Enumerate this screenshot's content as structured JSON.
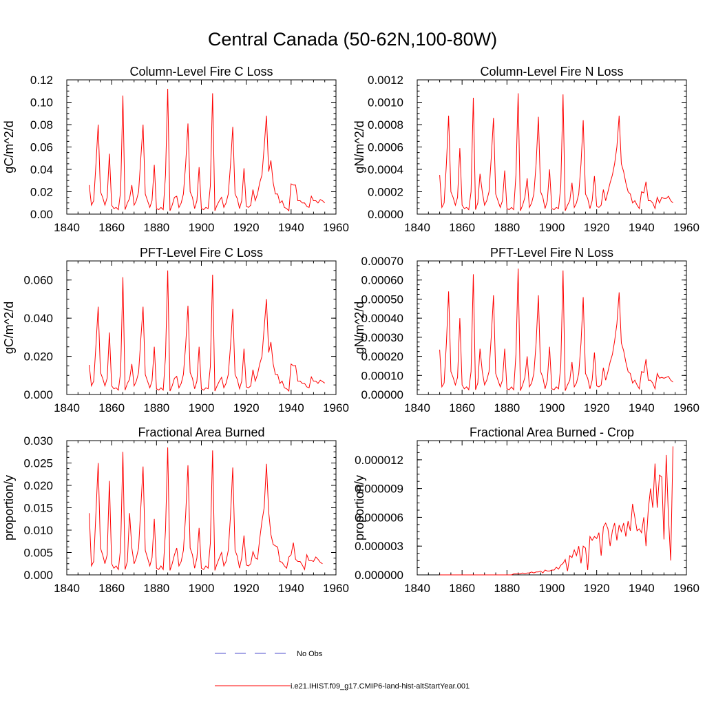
{
  "figure_title": "Central Canada (50-62N,100-80W)",
  "legend": {
    "obs_label": "No Obs",
    "obs_color": "#4d4dcc",
    "model_label": "i.e21.IHIST.f09_g17.CMIP6-land-hist-altStartYear.001",
    "model_color": "#ff0000"
  },
  "chart_data": [
    {
      "type": "line",
      "title": "Column-Level Fire C Loss",
      "ylabel": "gC/m^2/d",
      "xlim": [
        1840,
        1960
      ],
      "ylim": [
        0,
        0.12
      ],
      "xticks": [
        "1840",
        "1860",
        "1880",
        "1900",
        "1920",
        "1940",
        "1960"
      ],
      "yticks": [
        "0.00",
        "0.02",
        "0.04",
        "0.06",
        "0.08",
        "0.10",
        "0.12"
      ],
      "series": [
        {
          "x_start": 1850,
          "values": [
            0.026,
            0.008,
            0.012,
            0.045,
            0.08,
            0.02,
            0.015,
            0.008,
            0.015,
            0.054,
            0.008,
            0.005,
            0.006,
            0.004,
            0.02,
            0.106,
            0.004,
            0.01,
            0.014,
            0.026,
            0.008,
            0.012,
            0.02,
            0.05,
            0.08,
            0.018,
            0.012,
            0.006,
            0.012,
            0.044,
            0.005,
            0.004,
            0.006,
            0.004,
            0.035,
            0.112,
            0.003,
            0.008,
            0.015,
            0.016,
            0.006,
            0.01,
            0.018,
            0.045,
            0.081,
            0.02,
            0.015,
            0.005,
            0.012,
            0.042,
            0.005,
            0.004,
            0.006,
            0.005,
            0.025,
            0.108,
            0.003,
            0.008,
            0.012,
            0.015,
            0.006,
            0.01,
            0.018,
            0.045,
            0.078,
            0.018,
            0.014,
            0.005,
            0.012,
            0.041,
            0.007,
            0.006,
            0.008,
            0.022,
            0.012,
            0.018,
            0.028,
            0.035,
            0.06,
            0.088,
            0.038,
            0.048,
            0.028,
            0.018,
            0.018,
            0.01,
            0.012,
            0.006,
            0.005,
            0.003,
            0.027,
            0.026,
            0.026,
            0.012,
            0.012,
            0.01,
            0.01,
            0.007,
            0.006,
            0.016,
            0.012,
            0.012,
            0.01,
            0.013,
            0.012,
            0.01
          ]
        }
      ]
    },
    {
      "type": "line",
      "title": "Column-Level Fire N Loss",
      "ylabel": "gN/m^2/d",
      "xlim": [
        1840,
        1960
      ],
      "ylim": [
        0,
        0.0012
      ],
      "xticks": [
        "1840",
        "1860",
        "1880",
        "1900",
        "1920",
        "1940",
        "1960"
      ],
      "yticks": [
        "0.0000",
        "0.0002",
        "0.0004",
        "0.0006",
        "0.0008",
        "0.0010",
        "0.0012"
      ],
      "series": [
        {
          "x_start": 1850,
          "values": [
            0.00035,
            6e-05,
            0.0001,
            0.00045,
            0.00088,
            0.0002,
            0.00015,
            8e-05,
            0.00015,
            0.00059,
            8e-05,
            5e-05,
            6e-05,
            4e-05,
            0.0002,
            0.00104,
            4e-05,
            0.0001,
            0.00036,
            0.0002,
            8e-05,
            0.00012,
            0.0002,
            0.0005,
            0.00086,
            0.00018,
            0.00012,
            6e-05,
            0.00012,
            0.00039,
            5e-05,
            4e-05,
            6e-05,
            4e-05,
            0.00035,
            0.00108,
            3e-05,
            8e-05,
            0.00015,
            0.00032,
            6e-05,
            0.0001,
            0.00018,
            0.00045,
            0.00087,
            0.0002,
            0.00015,
            5e-05,
            0.00012,
            0.0004,
            5e-05,
            4e-05,
            6e-05,
            5e-05,
            0.00025,
            0.00107,
            3e-05,
            8e-05,
            0.00012,
            0.00028,
            6e-05,
            0.0001,
            0.00018,
            0.00045,
            0.00084,
            0.00018,
            0.00014,
            5e-05,
            0.00012,
            0.00034,
            7e-05,
            6e-05,
            8e-05,
            0.00022,
            0.00012,
            0.0002,
            0.00028,
            0.00035,
            0.00045,
            0.0006,
            0.00088,
            0.00045,
            0.00038,
            0.00028,
            0.0002,
            0.00018,
            0.0001,
            0.00012,
            8e-05,
            5e-05,
            0.0002,
            0.00019,
            0.00029,
            0.00012,
            0.00012,
            0.0001,
            5e-05,
            0.00015,
            0.0001,
            0.00015,
            0.00014,
            0.00014,
            0.00016,
            0.00012,
            0.0001
          ]
        }
      ]
    },
    {
      "type": "line",
      "title": "PFT-Level Fire C Loss",
      "ylabel": "gC/m^2/d",
      "xlim": [
        1840,
        1960
      ],
      "ylim": [
        0,
        0.07
      ],
      "xticks": [
        "1840",
        "1860",
        "1880",
        "1900",
        "1920",
        "1940",
        "1960"
      ],
      "yticks": [
        "0.000",
        "0.020",
        "0.040",
        "0.060"
      ],
      "ytick_values": [
        0,
        0.02,
        0.04,
        0.06
      ],
      "series": [
        {
          "x_start": 1850,
          "values": [
            0.0155,
            0.0045,
            0.007,
            0.026,
            0.046,
            0.0115,
            0.0085,
            0.0045,
            0.0085,
            0.0325,
            0.0045,
            0.003,
            0.0035,
            0.0023,
            0.0115,
            0.0615,
            0.0023,
            0.0058,
            0.008,
            0.016,
            0.0045,
            0.007,
            0.0115,
            0.029,
            0.046,
            0.0105,
            0.007,
            0.0035,
            0.007,
            0.025,
            0.003,
            0.0023,
            0.0035,
            0.0023,
            0.02,
            0.065,
            0.0018,
            0.0045,
            0.0085,
            0.0095,
            0.0035,
            0.0058,
            0.0105,
            0.026,
            0.0465,
            0.0115,
            0.0085,
            0.003,
            0.007,
            0.025,
            0.003,
            0.0023,
            0.0035,
            0.003,
            0.0145,
            0.0628,
            0.0018,
            0.0045,
            0.007,
            0.009,
            0.0035,
            0.0058,
            0.0105,
            0.026,
            0.0448,
            0.0105,
            0.008,
            0.003,
            0.007,
            0.024,
            0.004,
            0.0035,
            0.0045,
            0.013,
            0.007,
            0.0105,
            0.016,
            0.02,
            0.035,
            0.05,
            0.022,
            0.0275,
            0.016,
            0.0105,
            0.0105,
            0.0058,
            0.007,
            0.0035,
            0.003,
            0.0018,
            0.016,
            0.015,
            0.0152,
            0.007,
            0.007,
            0.0058,
            0.0058,
            0.004,
            0.0035,
            0.0092,
            0.007,
            0.007,
            0.0058,
            0.0075,
            0.0068,
            0.006
          ]
        }
      ]
    },
    {
      "type": "line",
      "title": "PFT-Level Fire N Loss",
      "ylabel": "gN/m^2/d",
      "xlim": [
        1840,
        1960
      ],
      "ylim": [
        0,
        0.0007
      ],
      "xticks": [
        "1840",
        "1860",
        "1880",
        "1900",
        "1920",
        "1940",
        "1960"
      ],
      "yticks": [
        "0.00000",
        "0.00010",
        "0.00020",
        "0.00030",
        "0.00040",
        "0.00050",
        "0.00060",
        "0.00070"
      ],
      "series": [
        {
          "x_start": 1850,
          "values": [
            0.000235,
            4e-05,
            6e-05,
            0.00027,
            0.00054,
            0.00012,
            9e-05,
            5e-05,
            9e-05,
            0.0004,
            5e-05,
            3e-05,
            4e-05,
            2.5e-05,
            0.00012,
            0.00063,
            2.5e-05,
            6e-05,
            0.00024,
            0.00012,
            5e-05,
            7.5e-05,
            0.00012,
            0.0003,
            0.00052,
            0.00011,
            7.5e-05,
            4e-05,
            7.5e-05,
            0.00024,
            3e-05,
            2.5e-05,
            4e-05,
            2.5e-05,
            0.00021,
            0.00066,
            2e-05,
            5e-05,
            9e-05,
            0.0002,
            4e-05,
            6e-05,
            0.00011,
            0.00027,
            0.00052,
            0.00012,
            9e-05,
            3e-05,
            7.5e-05,
            0.00025,
            3e-05,
            2.5e-05,
            4e-05,
            3e-05,
            0.00015,
            0.00065,
            2e-05,
            5e-05,
            7.5e-05,
            0.00017,
            4e-05,
            6e-05,
            0.00011,
            0.00027,
            0.00051,
            0.00011,
            8.5e-05,
            3e-05,
            7.5e-05,
            0.00022,
            4.5e-05,
            4e-05,
            5e-05,
            0.00014,
            7.5e-05,
            0.00012,
            0.00017,
            0.00021,
            0.00028,
            0.00037,
            0.000535,
            0.00027,
            0.00023,
            0.00017,
            0.00012,
            0.00011,
            6e-05,
            7.5e-05,
            5e-05,
            3e-05,
            0.00012,
            0.000115,
            0.000185,
            7.5e-05,
            7.5e-05,
            6e-05,
            3e-05,
            0.00011,
            8.5e-05,
            9e-05,
            8.5e-05,
            9e-05,
            9.5e-05,
            7.5e-05,
            6.5e-05
          ]
        }
      ]
    },
    {
      "type": "line",
      "title": "Fractional Area Burned",
      "ylabel": "proportion/y",
      "xlim": [
        1840,
        1960
      ],
      "ylim": [
        0,
        0.03
      ],
      "xticks": [
        "1840",
        "1860",
        "1880",
        "1900",
        "1920",
        "1940",
        "1960"
      ],
      "yticks": [
        "0.000",
        "0.005",
        "0.010",
        "0.015",
        "0.020",
        "0.025",
        "0.030"
      ],
      "series": [
        {
          "x_start": 1850,
          "values": [
            0.0138,
            0.002,
            0.003,
            0.014,
            0.025,
            0.006,
            0.0045,
            0.0025,
            0.0045,
            0.021,
            0.0025,
            0.0015,
            0.002,
            0.0012,
            0.006,
            0.0275,
            0.0012,
            0.003,
            0.0138,
            0.006,
            0.0025,
            0.0038,
            0.006,
            0.015,
            0.0242,
            0.0055,
            0.0038,
            0.002,
            0.0038,
            0.0125,
            0.0015,
            0.0012,
            0.002,
            0.0012,
            0.01,
            0.0285,
            0.001,
            0.0025,
            0.0045,
            0.006,
            0.002,
            0.003,
            0.0055,
            0.0135,
            0.0245,
            0.006,
            0.0045,
            0.0015,
            0.0038,
            0.0105,
            0.0015,
            0.0012,
            0.002,
            0.0015,
            0.007,
            0.0278,
            0.001,
            0.0025,
            0.0038,
            0.005,
            0.002,
            0.003,
            0.0055,
            0.0135,
            0.024,
            0.0055,
            0.0042,
            0.0015,
            0.0038,
            0.0088,
            0.0022,
            0.002,
            0.0025,
            0.0052,
            0.0038,
            0.0035,
            0.008,
            0.012,
            0.015,
            0.0248,
            0.014,
            0.009,
            0.0068,
            0.0065,
            0.0062,
            0.003,
            0.0028,
            0.002,
            0.0015,
            0.004,
            0.0045,
            0.0072,
            0.0035,
            0.003,
            0.003,
            0.0022,
            0.0012,
            0.0045,
            0.0032,
            0.0032,
            0.003,
            0.004,
            0.0035,
            0.0028,
            0.0025
          ]
        }
      ]
    },
    {
      "type": "line",
      "title": "Fractional Area Burned - Crop",
      "ylabel": "proportion/y",
      "xlim": [
        1840,
        1960
      ],
      "ylim": [
        0,
        1.4e-05
      ],
      "xticks": [
        "1840",
        "1860",
        "1880",
        "1900",
        "1920",
        "1940",
        "1960"
      ],
      "yticks": [
        "0.000000",
        "0.000003",
        "0.000006",
        "0.000009",
        "0.000012"
      ],
      "ytick_values": [
        0,
        3e-06,
        6e-06,
        9e-06,
        1.2e-05
      ],
      "series": [
        {
          "x_start": 1850,
          "values": [
            0.0,
            0.0,
            0.0,
            0.0,
            0.0,
            0.0,
            0.0,
            0.0,
            0.0,
            0.0,
            0.0,
            0.0,
            0.0,
            0.0,
            0.0,
            0.0,
            0.0,
            0.0,
            0.0,
            0.0,
            0.0,
            0.0,
            0.0,
            0.0,
            0.0,
            0.0,
            0.0,
            0.0,
            0.0,
            0.0,
            0.0,
            0.0,
            0.0,
            1e-07,
            1e-07,
            1e-07,
            1e-07,
            2e-07,
            1e-07,
            2e-07,
            2e-07,
            3e-07,
            2e-07,
            3e-07,
            3e-07,
            4e-07,
            2e-07,
            5e-07,
            4e-07,
            4e-07,
            5e-07,
            5e-07,
            8e-07,
            6e-07,
            1e-06,
            1.2e-06,
            1.6e-06,
            4e-07,
            2e-06,
            1.8e-06,
            2.6e-06,
            2e-06,
            3e-06,
            1.2e-06,
            3e-06,
            2.8e-06,
            5e-07,
            4e-06,
            3.6e-06,
            4e-06,
            3.8e-06,
            4.4e-06,
            2e-06,
            5e-06,
            5.4e-06,
            4.8e-06,
            3e-06,
            4.6e-06,
            5.4e-06,
            3.6e-06,
            5.2e-06,
            4.5e-06,
            5.4e-06,
            4e-06,
            5.6e-06,
            4.6e-06,
            7.4e-06,
            6e-06,
            4.6e-06,
            4.8e-06,
            4.4e-06,
            6e-06,
            3e-06,
            6.8e-06,
            9e-06,
            7e-06,
            1.16e-05,
            7e-06,
            1.04e-05,
            1.02e-05,
            3.7e-06,
            1.25e-05,
            6e-06,
            1.5e-06,
            1.34e-05
          ]
        }
      ]
    }
  ]
}
